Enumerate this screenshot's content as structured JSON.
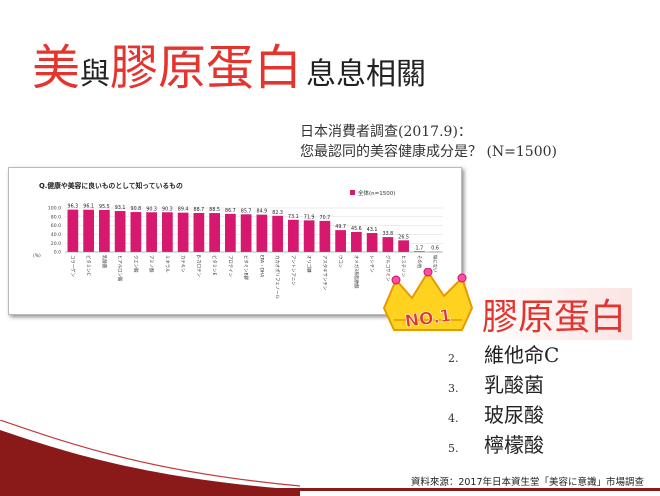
{
  "slide": {
    "title": {
      "part1": "美",
      "part2": "與",
      "part3": "膠原蛋白",
      "part4": "息息相關"
    },
    "survey_line1": "日本消費者調查(2017.9)：",
    "survey_line2": "您最認同的美容健康成分是？ (N=1500)",
    "no1_badge": "NO.1",
    "no1_term": "膠原蛋白",
    "ranking": [
      {
        "num": "2.",
        "name": "維他命C"
      },
      {
        "num": "3.",
        "name": "乳酸菌"
      },
      {
        "num": "4.",
        "name": "玻尿酸"
      },
      {
        "num": "5.",
        "name": "檸檬酸"
      }
    ],
    "source": "資料來源：2017年日本資生堂「美容に意識」市場調查"
  },
  "chart_data": {
    "type": "bar",
    "title": "Q.健康や美容に良いものとして知っているもの",
    "legend": "全体(n=1500)",
    "legend_position": "top-right",
    "ylabel": "(%)",
    "ylim": [
      0,
      100
    ],
    "yticks": [
      "100.0",
      "80.0",
      "60.0",
      "40.0",
      "20.0",
      "0.0"
    ],
    "categories": [
      "コラーゲン",
      "ビタミンC",
      "乳酸菌",
      "ヒアルロン酸",
      "クエン酸",
      "アミノ酸",
      "ミネラル",
      "カテキン",
      "β-カロテン",
      "ビタミンE",
      "プロテイン",
      "ビタミンB群",
      "EPA・DHA",
      "カカオポリフェノール",
      "アントシアニン",
      "オリゴ糖",
      "アスタキサンチン",
      "ウコン",
      "オメガ3系脂肪酸",
      "レシチン",
      "グルコサミン",
      "ヒスチジン",
      "その他",
      "特にない"
    ],
    "values": [
      96.3,
      96.1,
      95.5,
      93.1,
      90.8,
      90.3,
      90.3,
      89.4,
      88.7,
      88.5,
      86.7,
      85.7,
      84.9,
      82.3,
      73.1,
      71.9,
      70.7,
      49.7,
      45.6,
      43.1,
      33.8,
      26.5,
      1.7,
      0.6
    ],
    "colors": {
      "bar": "#d6186f",
      "accent": "#e4342e"
    }
  }
}
